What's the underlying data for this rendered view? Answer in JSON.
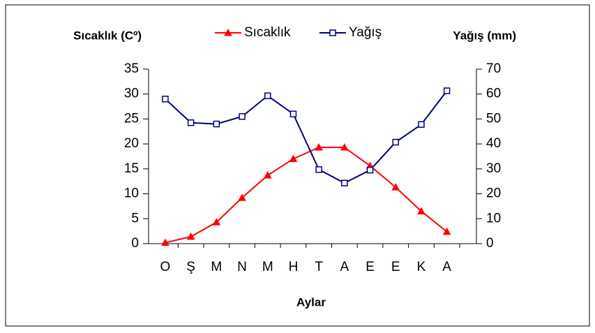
{
  "chart_data": {
    "type": "line",
    "y_label": "Sıcaklık (Cº)",
    "y2_label": "Yağış (mm)",
    "x_label": "Aylar",
    "categories": [
      "O",
      "Ş",
      "M",
      "N",
      "M",
      "H",
      "T",
      "A",
      "E",
      "E",
      "K",
      "A"
    ],
    "series": [
      {
        "name": "Sıcaklık",
        "color": "#ff0000",
        "marker": "triangle",
        "axis": "y",
        "values": [
          0.2,
          1.4,
          4.3,
          9.2,
          13.7,
          17,
          19.3,
          19.3,
          15.6,
          11.3,
          6.5,
          2.4
        ]
      },
      {
        "name": "Yağış",
        "color": "#000080",
        "marker": "square",
        "axis": "y2",
        "values": [
          58,
          48.5,
          48,
          51,
          59.3,
          52,
          29.7,
          24.3,
          29.5,
          40.7,
          47.8,
          61.3
        ]
      }
    ],
    "ylim": [
      0,
      35
    ],
    "yticks": [
      0,
      5,
      10,
      15,
      20,
      25,
      30,
      35
    ],
    "y2lim": [
      0,
      70
    ],
    "y2ticks": [
      0,
      10,
      20,
      30,
      40,
      50,
      60,
      70
    ],
    "grid": false
  }
}
